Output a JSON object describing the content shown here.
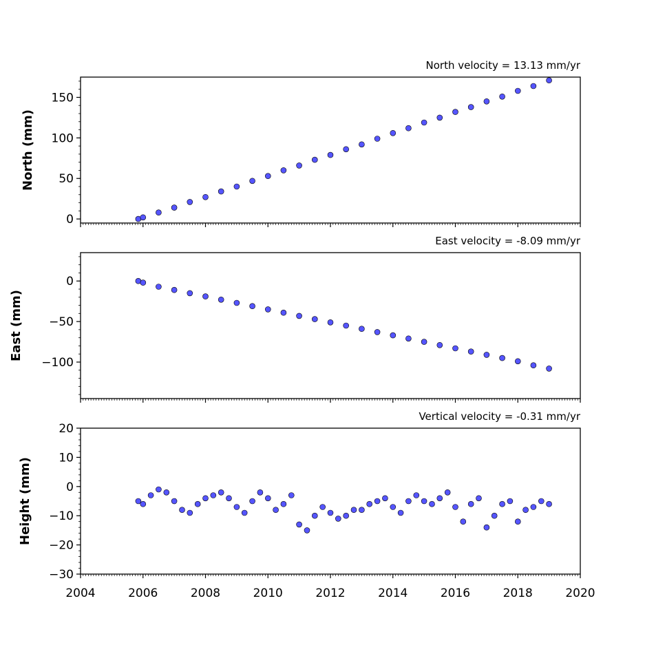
{
  "chart_data": [
    {
      "type": "scatter",
      "title": "North velocity = 13.13 mm/yr",
      "ylabel": "North (mm)",
      "xlabel": "",
      "xlim": [
        2004,
        2020
      ],
      "ylim": [
        -5,
        175
      ],
      "yticks": [
        0,
        50,
        100,
        150
      ],
      "xticks": [
        2004,
        2006,
        2008,
        2010,
        2012,
        2014,
        2016,
        2018,
        2020
      ],
      "show_xtick_labels": false,
      "grid": false,
      "marker_color": "#5555ff",
      "marker_edge": "#000000",
      "series": [
        {
          "x": [
            2005.85,
            2006.0,
            2006.5,
            2007.0,
            2007.5,
            2008.0,
            2008.5,
            2009.0,
            2009.5,
            2010.0,
            2010.5,
            2011.0,
            2011.5,
            2012.0,
            2012.5,
            2013.0,
            2013.5,
            2014.0,
            2014.5,
            2015.0,
            2015.5,
            2016.0,
            2016.5,
            2017.0,
            2017.5,
            2018.0,
            2018.5,
            2019.0
          ],
          "y": [
            0,
            2,
            8,
            14,
            21,
            27,
            34,
            40,
            47,
            53,
            60,
            66,
            73,
            79,
            86,
            92,
            99,
            106,
            112,
            119,
            125,
            132,
            138,
            145,
            151,
            158,
            164,
            171
          ]
        }
      ]
    },
    {
      "type": "scatter",
      "title": "East velocity = -8.09 mm/yr",
      "ylabel": "East (mm)",
      "xlabel": "",
      "xlim": [
        2004,
        2020
      ],
      "ylim": [
        -145,
        35
      ],
      "yticks": [
        0,
        -50,
        -100
      ],
      "xticks": [
        2004,
        2006,
        2008,
        2010,
        2012,
        2014,
        2016,
        2018,
        2020
      ],
      "show_xtick_labels": false,
      "grid": false,
      "marker_color": "#5555ff",
      "marker_edge": "#000000",
      "series": [
        {
          "x": [
            2005.85,
            2006.0,
            2006.5,
            2007.0,
            2007.5,
            2008.0,
            2008.5,
            2009.0,
            2009.5,
            2010.0,
            2010.5,
            2011.0,
            2011.5,
            2012.0,
            2012.5,
            2013.0,
            2013.5,
            2014.0,
            2014.5,
            2015.0,
            2015.5,
            2016.0,
            2016.5,
            2017.0,
            2017.5,
            2018.0,
            2018.5,
            2019.0
          ],
          "y": [
            0,
            -2,
            -7,
            -11,
            -15,
            -19,
            -23,
            -27,
            -31,
            -35,
            -39,
            -43,
            -47,
            -51,
            -55,
            -59,
            -63,
            -67,
            -71,
            -75,
            -79,
            -83,
            -87,
            -91,
            -95,
            -99,
            -104,
            -108
          ]
        }
      ]
    },
    {
      "type": "scatter",
      "title": "Vertical velocity = -0.31 mm/yr",
      "ylabel": "Height (mm)",
      "xlabel": "",
      "xlim": [
        2004,
        2020
      ],
      "ylim": [
        -30,
        20
      ],
      "yticks": [
        20,
        10,
        0,
        -10,
        -20,
        -30
      ],
      "xticks": [
        2004,
        2006,
        2008,
        2010,
        2012,
        2014,
        2016,
        2018,
        2020
      ],
      "show_xtick_labels": true,
      "grid": false,
      "marker_color": "#5555ff",
      "marker_edge": "#000000",
      "series": [
        {
          "x": [
            2005.85,
            2006.0,
            2006.25,
            2006.5,
            2006.75,
            2007.0,
            2007.25,
            2007.5,
            2007.75,
            2008.0,
            2008.25,
            2008.5,
            2008.75,
            2009.0,
            2009.25,
            2009.5,
            2009.75,
            2010.0,
            2010.25,
            2010.5,
            2010.75,
            2011.0,
            2011.25,
            2011.5,
            2011.75,
            2012.0,
            2012.25,
            2012.5,
            2012.75,
            2013.0,
            2013.25,
            2013.5,
            2013.75,
            2014.0,
            2014.25,
            2014.5,
            2014.75,
            2015.0,
            2015.25,
            2015.5,
            2015.75,
            2016.0,
            2016.25,
            2016.5,
            2016.75,
            2017.0,
            2017.25,
            2017.5,
            2017.75,
            2018.0,
            2018.25,
            2018.5,
            2018.75,
            2019.0
          ],
          "y": [
            -5,
            -6,
            -3,
            -1,
            -2,
            -5,
            -8,
            -9,
            -6,
            -4,
            -3,
            -2,
            -4,
            -7,
            -9,
            -5,
            -2,
            -4,
            -8,
            -6,
            -3,
            -13,
            -15,
            -10,
            -7,
            -9,
            -11,
            -10,
            -8,
            -8,
            -6,
            -5,
            -4,
            -7,
            -9,
            -5,
            -3,
            -5,
            -6,
            -4,
            -2,
            -7,
            -12,
            -6,
            -4,
            -14,
            -10,
            -6,
            -5,
            -12,
            -8,
            -7,
            -5,
            -6
          ]
        }
      ]
    }
  ]
}
